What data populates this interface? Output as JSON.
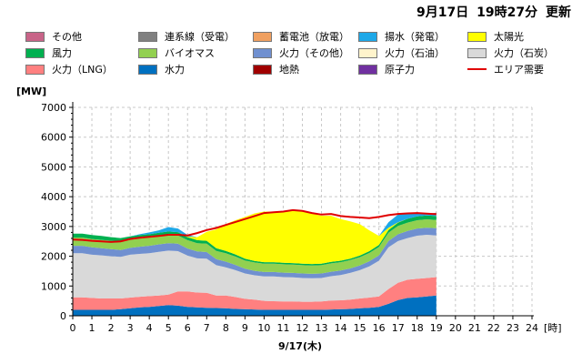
{
  "header": {
    "date": "9月17日",
    "time": "19時27分",
    "updated": "更新"
  },
  "legend": [
    {
      "key": "other",
      "label": "その他",
      "color": "#c86488"
    },
    {
      "key": "interconnect",
      "label": "連系線（受電）",
      "color": "#808080"
    },
    {
      "key": "battery",
      "label": "蓄電池（放電）",
      "color": "#f0a060"
    },
    {
      "key": "pumped",
      "label": "揚水（発電）",
      "color": "#1ea8e8"
    },
    {
      "key": "solar",
      "label": "太陽光",
      "color": "#ffff00"
    },
    {
      "key": "wind",
      "label": "風力",
      "color": "#00b050"
    },
    {
      "key": "biomass",
      "label": "バイオマス",
      "color": "#92d050"
    },
    {
      "key": "thermal_other",
      "label": "火力（その他）",
      "color": "#7090d0"
    },
    {
      "key": "thermal_oil",
      "label": "火力（石油）",
      "color": "#fff4cc"
    },
    {
      "key": "thermal_coal",
      "label": "火力（石炭）",
      "color": "#d9d9d9"
    },
    {
      "key": "thermal_lng",
      "label": "火力（LNG）",
      "color": "#ff8080"
    },
    {
      "key": "hydro",
      "label": "水力",
      "color": "#0070c0"
    },
    {
      "key": "geothermal",
      "label": "地熱",
      "color": "#a00000"
    },
    {
      "key": "nuclear",
      "label": "原子力",
      "color": "#7030a0"
    },
    {
      "key": "demand",
      "label": "エリア需要",
      "color": "#e00000",
      "style": "line"
    }
  ],
  "chart_data": {
    "type": "area",
    "ylabel": "[MW]",
    "xunit": "[時]",
    "xlabel": "9/17(木)",
    "ylim": [
      0,
      7000
    ],
    "yticks": [
      0,
      1000,
      2000,
      3000,
      4000,
      5000,
      6000,
      7000
    ],
    "xlim": [
      0,
      24
    ],
    "xticks": [
      0,
      1,
      2,
      3,
      4,
      5,
      6,
      7,
      8,
      9,
      10,
      11,
      12,
      13,
      14,
      15,
      16,
      17,
      18,
      19,
      20,
      21,
      22,
      23,
      24
    ],
    "grid": true,
    "x": [
      0,
      0.5,
      1,
      1.5,
      2,
      2.5,
      3,
      3.5,
      4,
      4.5,
      5,
      5.5,
      6,
      6.5,
      7,
      7.5,
      8,
      8.5,
      9,
      9.5,
      10,
      10.5,
      11,
      11.5,
      12,
      12.5,
      13,
      13.5,
      14,
      14.5,
      15,
      15.5,
      16,
      16.5,
      17,
      17.5,
      18,
      18.5,
      19
    ],
    "series": [
      {
        "name": "水力",
        "key": "hydro",
        "values": [
          200,
          200,
          200,
          200,
          200,
          220,
          250,
          280,
          300,
          330,
          360,
          340,
          300,
          280,
          270,
          260,
          250,
          230,
          220,
          210,
          200,
          200,
          200,
          200,
          200,
          200,
          200,
          210,
          220,
          230,
          250,
          270,
          300,
          400,
          530,
          600,
          620,
          650,
          680
        ]
      },
      {
        "name": "火力（LNG）",
        "key": "thermal_lng",
        "values": [
          420,
          420,
          400,
          380,
          380,
          360,
          360,
          360,
          360,
          350,
          350,
          480,
          520,
          500,
          500,
          420,
          430,
          400,
          350,
          330,
          300,
          290,
          280,
          280,
          270,
          270,
          280,
          300,
          300,
          310,
          330,
          340,
          350,
          500,
          580,
          610,
          620,
          620,
          620
        ]
      },
      {
        "name": "火力（石炭）",
        "key": "thermal_coal",
        "values": [
          1480,
          1480,
          1450,
          1450,
          1420,
          1400,
          1440,
          1440,
          1440,
          1470,
          1480,
          1350,
          1200,
          1150,
          1150,
          1020,
          950,
          900,
          850,
          820,
          820,
          830,
          820,
          810,
          800,
          790,
          790,
          820,
          850,
          900,
          950,
          1050,
          1200,
          1400,
          1400,
          1400,
          1450,
          1450,
          1400
        ]
      },
      {
        "name": "火力（その他）",
        "key": "thermal_other",
        "values": [
          250,
          250,
          250,
          240,
          240,
          230,
          230,
          240,
          250,
          250,
          250,
          250,
          240,
          230,
          220,
          200,
          190,
          180,
          160,
          150,
          150,
          150,
          150,
          150,
          150,
          150,
          150,
          150,
          150,
          150,
          160,
          170,
          180,
          210,
          230,
          240,
          240,
          240,
          240
        ]
      },
      {
        "name": "バイオマス",
        "key": "biomass",
        "values": [
          280,
          280,
          280,
          280,
          280,
          280,
          280,
          280,
          280,
          280,
          280,
          280,
          280,
          280,
          280,
          280,
          280,
          280,
          280,
          280,
          280,
          280,
          280,
          280,
          280,
          280,
          280,
          280,
          280,
          280,
          280,
          280,
          280,
          280,
          280,
          280,
          280,
          280,
          280
        ]
      },
      {
        "name": "風力",
        "key": "wind",
        "values": [
          130,
          130,
          130,
          130,
          120,
          120,
          110,
          110,
          110,
          110,
          110,
          110,
          100,
          100,
          100,
          90,
          80,
          70,
          60,
          50,
          50,
          50,
          50,
          50,
          50,
          50,
          50,
          50,
          50,
          50,
          50,
          60,
          70,
          90,
          110,
          130,
          130,
          130,
          130
        ]
      },
      {
        "name": "太陽光",
        "key": "solar",
        "values": [
          0,
          0,
          0,
          0,
          0,
          0,
          0,
          0,
          0,
          0,
          0,
          0,
          20,
          100,
          300,
          630,
          900,
          1150,
          1400,
          1600,
          1700,
          1700,
          1720,
          1800,
          1780,
          1700,
          1610,
          1550,
          1400,
          1250,
          1060,
          700,
          300,
          80,
          10,
          0,
          0,
          0,
          0
        ]
      },
      {
        "name": "揚水（発電）",
        "key": "pumped",
        "values": [
          0,
          0,
          0,
          0,
          0,
          0,
          0,
          30,
          60,
          80,
          150,
          120,
          50,
          0,
          0,
          0,
          0,
          0,
          0,
          0,
          0,
          0,
          0,
          0,
          0,
          0,
          0,
          0,
          0,
          0,
          0,
          0,
          0,
          180,
          260,
          200,
          100,
          50,
          30
        ]
      },
      {
        "name": "連系線（受電）",
        "key": "interconnect",
        "values": [
          0,
          0,
          0,
          0,
          0,
          0,
          0,
          0,
          0,
          0,
          0,
          0,
          0,
          0,
          0,
          0,
          0,
          0,
          0,
          0,
          0,
          0,
          0,
          0,
          0,
          0,
          0,
          0,
          0,
          0,
          0,
          0,
          0,
          0,
          0,
          0,
          0,
          0,
          80
        ]
      }
    ],
    "demand": {
      "name": "エリア需要",
      "values": [
        2560,
        2550,
        2520,
        2500,
        2480,
        2500,
        2580,
        2620,
        2650,
        2680,
        2720,
        2720,
        2700,
        2780,
        2880,
        2950,
        3050,
        3150,
        3250,
        3350,
        3450,
        3480,
        3500,
        3550,
        3520,
        3450,
        3400,
        3420,
        3350,
        3320,
        3300,
        3280,
        3320,
        3380,
        3420,
        3440,
        3450,
        3430,
        3410
      ]
    }
  }
}
